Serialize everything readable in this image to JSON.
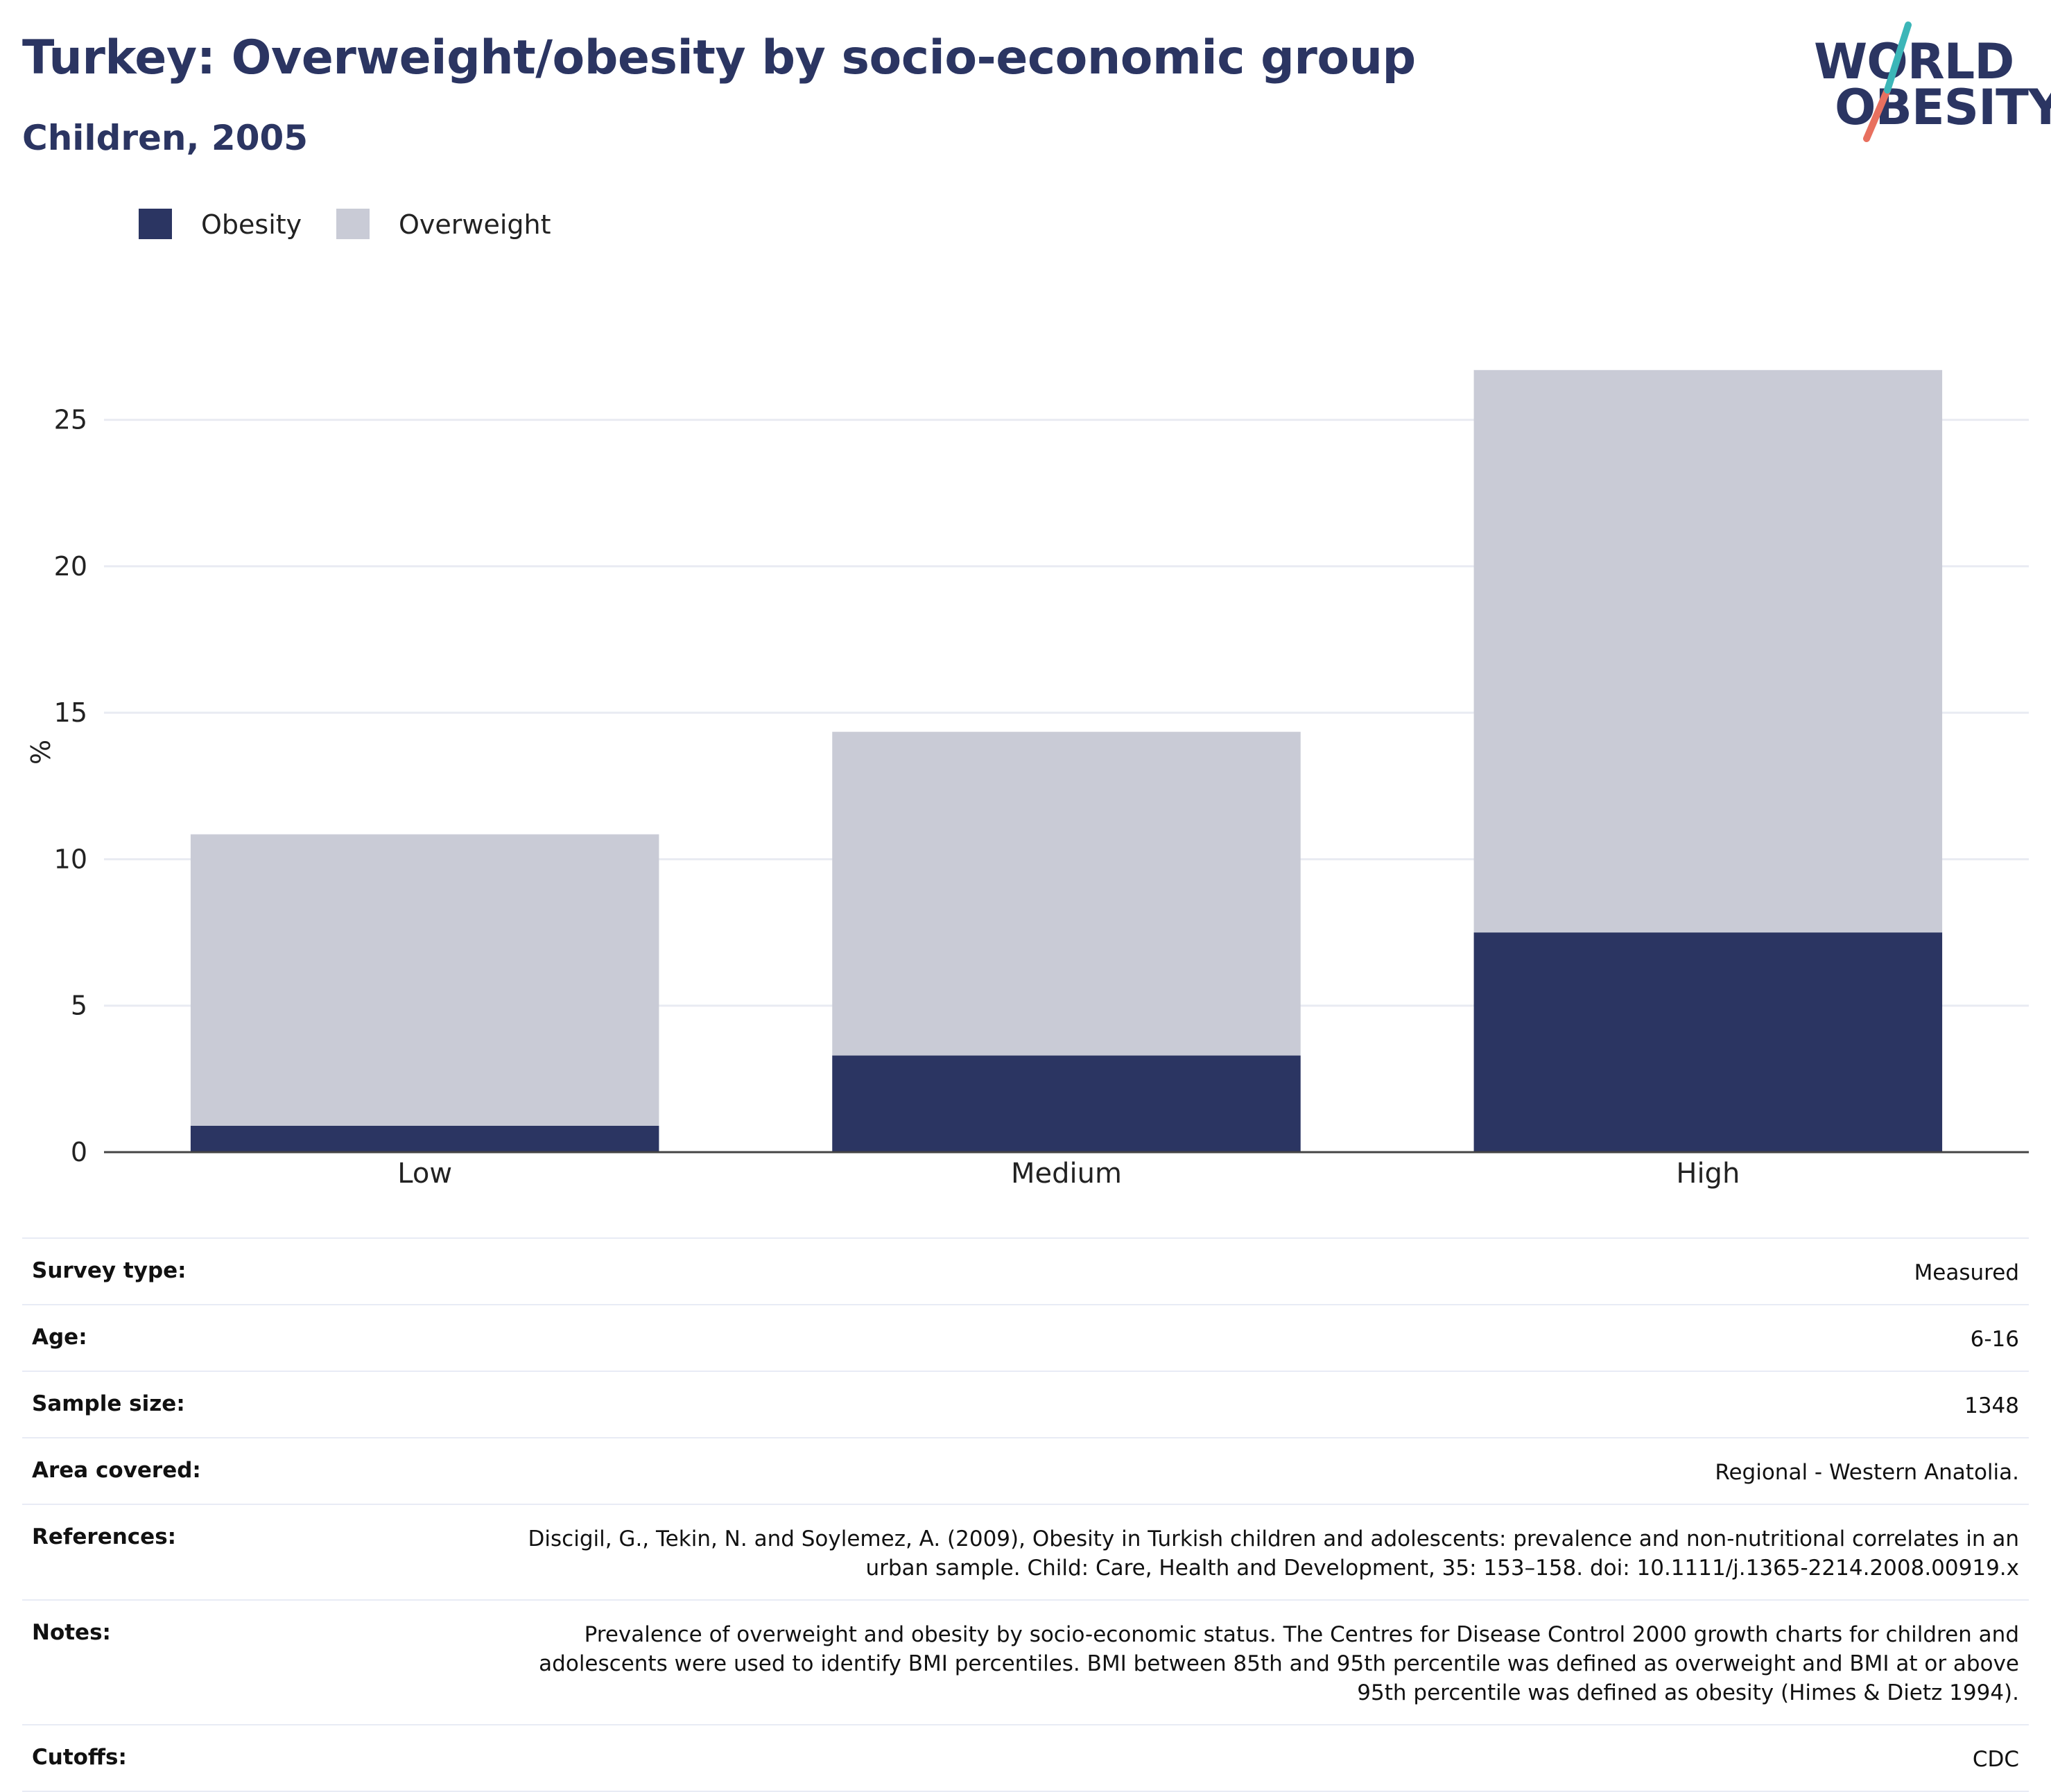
{
  "header": {
    "title": "Turkey: Overweight/obesity by socio-economic group",
    "subtitle": "Children, 2005"
  },
  "logo": {
    "line1": "WORLD",
    "line2": "OBESITY"
  },
  "legend": [
    {
      "label": "Obesity",
      "color": "#2b3562"
    },
    {
      "label": "Overweight",
      "color": "#c9cbd6"
    }
  ],
  "chart_data": {
    "type": "bar",
    "stacked": true,
    "categories": [
      "Low",
      "Medium",
      "High"
    ],
    "series": [
      {
        "name": "Obesity",
        "values": [
          0.9,
          3.3,
          7.5
        ],
        "color": "#2b3562"
      },
      {
        "name": "Overweight",
        "values": [
          9.95,
          11.05,
          19.2
        ],
        "color": "#c9cbd6"
      }
    ],
    "ylabel": "%",
    "ylim": [
      0,
      27.5
    ],
    "yticks": [
      0,
      5,
      10,
      15,
      20,
      25
    ],
    "grid": true,
    "legend_position": "top-left"
  },
  "info": [
    {
      "label": "Survey type:",
      "value": "Measured"
    },
    {
      "label": "Age:",
      "value": "6-16"
    },
    {
      "label": "Sample size:",
      "value": "1348"
    },
    {
      "label": "Area covered:",
      "value": "Regional - Western Anatolia."
    },
    {
      "label": "References:",
      "value": "Discigil, G., Tekin, N. and Soylemez, A. (2009), Obesity in Turkish children and adolescents: prevalence and non-nutritional correlates in an urban sample. Child: Care, Health and Development, 35: 153–158. doi: 10.1111/j.1365-2214.2008.00919.x"
    },
    {
      "label": "Notes:",
      "value": "Prevalence of overweight and obesity by socio-economic status. The Centres for Disease Control 2000 growth charts for children and adolescents were used to identify BMI percentiles. BMI between 85th and 95th percentile was defined as overweight and BMI at or above 95th percentile was defined as obesity (Himes & Dietz 1994)."
    },
    {
      "label": "Cutoffs:",
      "value": "CDC"
    }
  ]
}
